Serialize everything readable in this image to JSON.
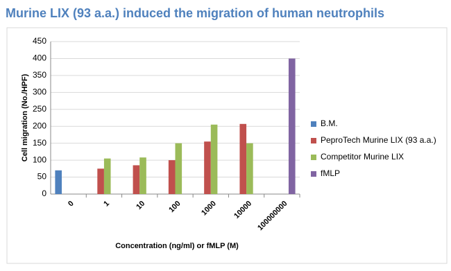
{
  "chart_data": {
    "type": "bar",
    "title": "Murine LIX (93 a.a.) induced the migration of human neutrophils",
    "x_label": "Concentration (ng/ml) or fMLP (M)",
    "y_label": "Cell migration (No./HPF)",
    "categories": [
      "0",
      "1",
      "10",
      "100",
      "1000",
      "10000",
      "100000000"
    ],
    "series": [
      {
        "name": "B.M.",
        "color": "#4f81bd",
        "values": [
          70,
          null,
          null,
          null,
          null,
          null,
          null
        ]
      },
      {
        "name": "PeproTech Murine LIX (93 a.a.)",
        "color": "#c0504d",
        "values": [
          null,
          75,
          85,
          100,
          155,
          207,
          null
        ]
      },
      {
        "name": "Competitor Murine LIX",
        "color": "#9bbb59",
        "values": [
          null,
          105,
          108,
          150,
          205,
          150,
          null
        ]
      },
      {
        "name": "fMLP",
        "color": "#8064a2",
        "values": [
          null,
          null,
          null,
          null,
          null,
          null,
          400
        ]
      }
    ],
    "ylim": [
      0,
      450
    ],
    "yticks": [
      0,
      50,
      100,
      150,
      200,
      250,
      300,
      350,
      400,
      450
    ],
    "grid": true,
    "legend": "right"
  }
}
